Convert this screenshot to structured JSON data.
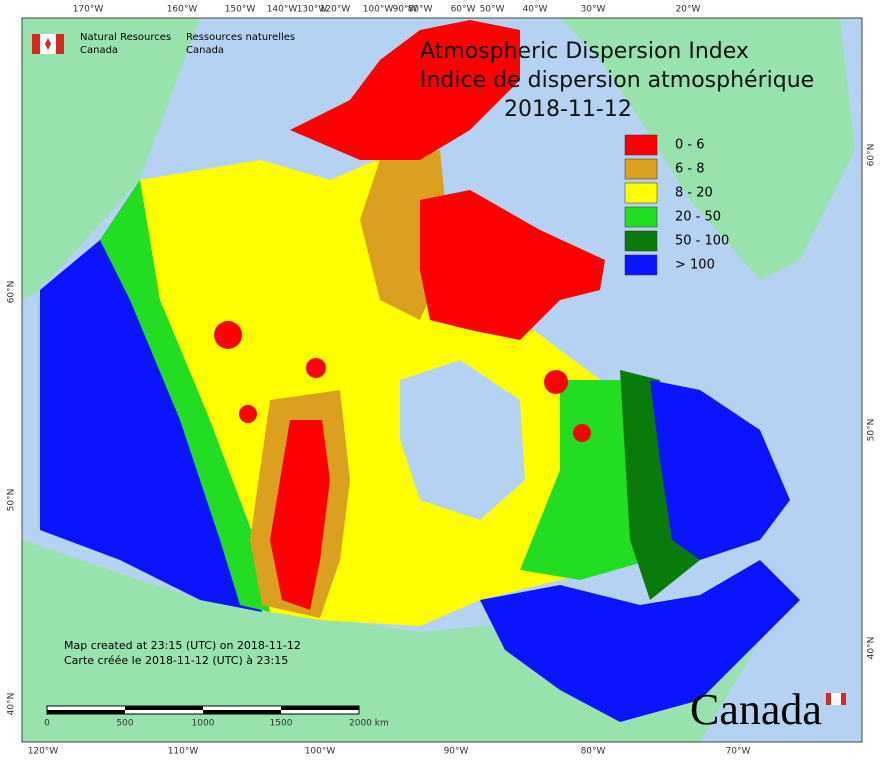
{
  "header": {
    "org_en": [
      "Natural Resources",
      "Canada"
    ],
    "org_fr": [
      "Ressources naturelles",
      "Canada"
    ]
  },
  "title": [
    "Atmospheric Dispersion Index",
    "Indice de dispersion atmosphérique",
    "2018-11-12"
  ],
  "legend": [
    {
      "label": "0 - 6",
      "color": "#ff0000"
    },
    {
      "label": "6 - 8",
      "color": "#dca020"
    },
    {
      "label": "8 - 20",
      "color": "#ffff00"
    },
    {
      "label": "20 - 50",
      "color": "#22dd22"
    },
    {
      "label": "50 - 100",
      "color": "#0a7a0a"
    },
    {
      "label": "> 100",
      "color": "#0a14ff"
    }
  ],
  "top_labels": [
    "170°W",
    "160°W",
    "150°W",
    "140°W",
    "130°W",
    "120°W",
    "100°W",
    "90°W",
    "80°W",
    "60°W",
    "50°W",
    "40°W",
    "30°W",
    "20°W"
  ],
  "bottom_labels": [
    "120°W",
    "110°W",
    "100°W",
    "90°W",
    "80°W",
    "70°W"
  ],
  "left_labels": [
    "60°N",
    "50°N",
    "40°N"
  ],
  "right_labels": [
    "60°N",
    "50°N",
    "40°N"
  ],
  "notes": [
    "Map created at 23:15 (UTC) on 2018-11-12",
    "Carte créée le 2018-11-12 (UTC) à 23:15"
  ],
  "scale": [
    "0",
    "500",
    "1000",
    "1500",
    "2000  km"
  ],
  "wordmark": "Canada"
}
